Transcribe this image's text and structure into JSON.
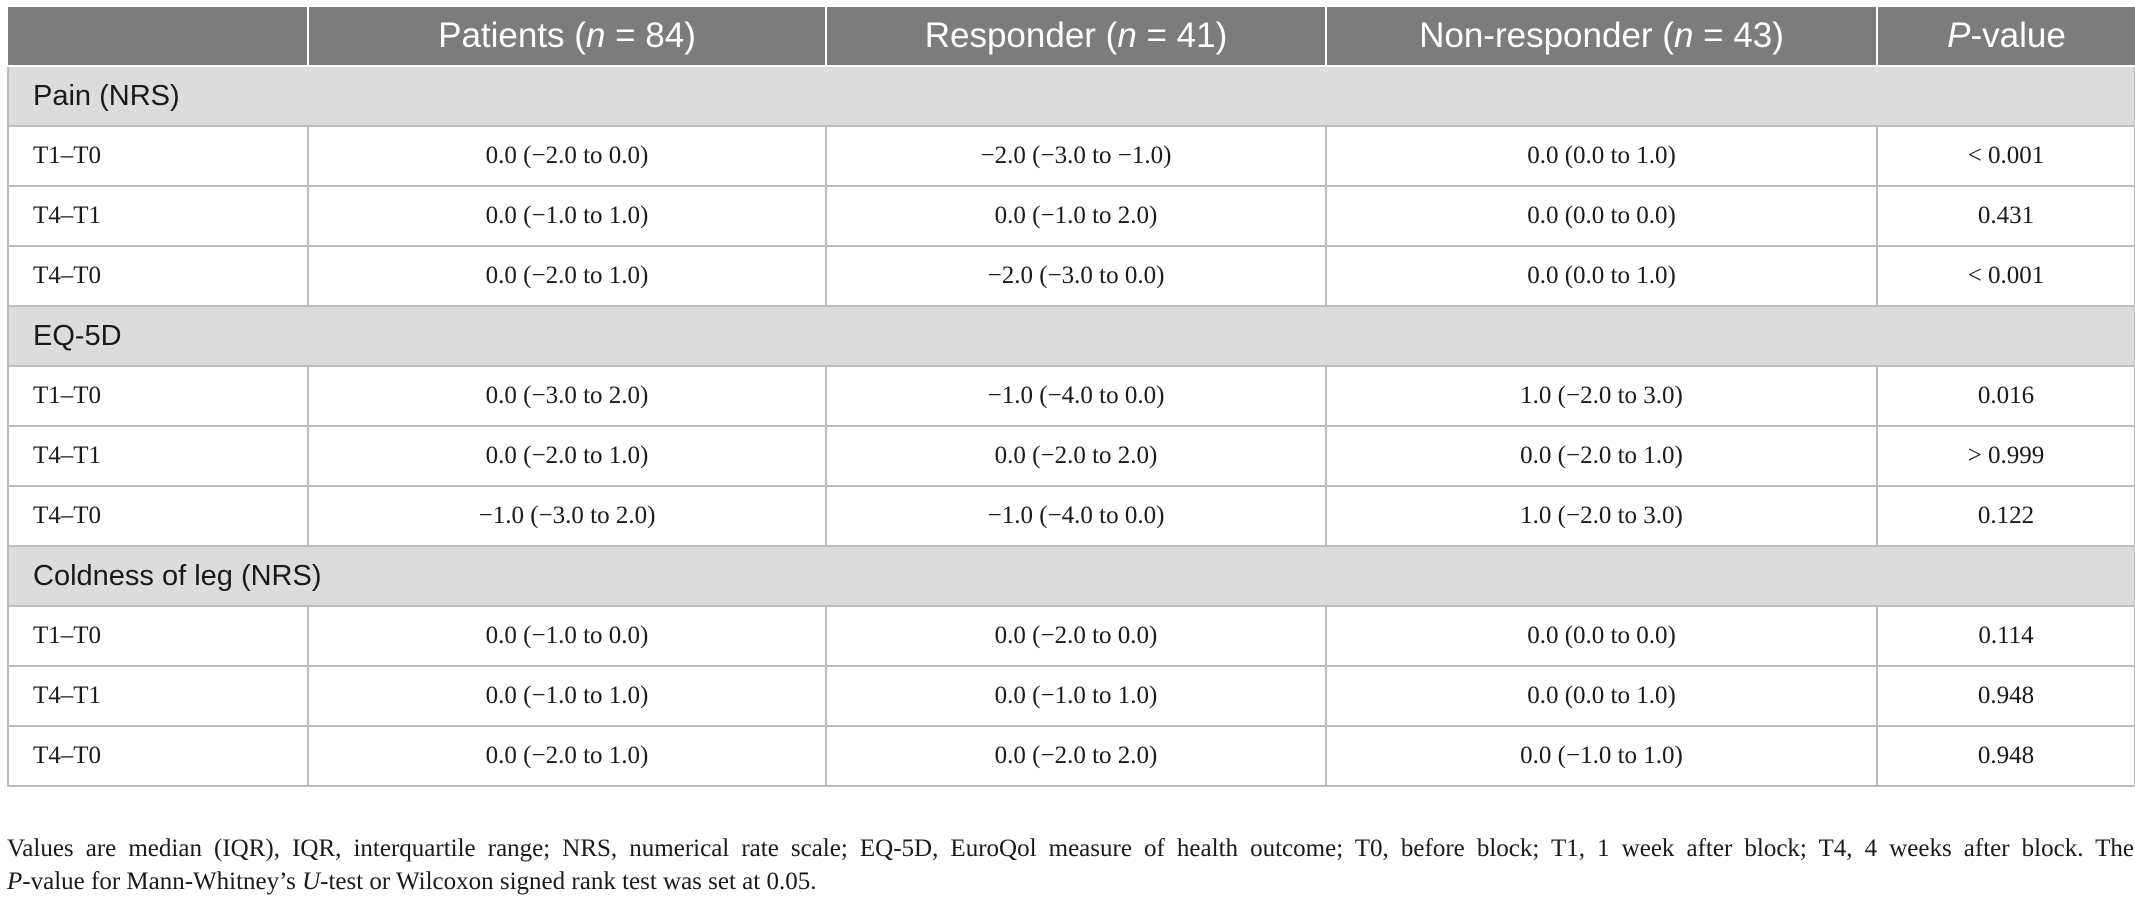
{
  "header": {
    "col0": "",
    "col1": {
      "pre": "Patients (",
      "n": "n",
      "post": " = 84)"
    },
    "col2": {
      "pre": "Responder (",
      "n": "n",
      "post": " = 41)"
    },
    "col3": {
      "pre": "Non-responder (",
      "n": "n",
      "post": " = 43)"
    },
    "col4": {
      "pre": "",
      "n": "P",
      "post": "-value"
    }
  },
  "sections": [
    {
      "title": "Pain (NRS)",
      "rows": [
        {
          "label": "T1–T0",
          "patients": "0.0 (−2.0 to 0.0)",
          "responder": "−2.0 (−3.0 to −1.0)",
          "nonresponder": "0.0 (0.0 to 1.0)",
          "p": "< 0.001"
        },
        {
          "label": "T4–T1",
          "patients": "0.0 (−1.0 to 1.0)",
          "responder": "0.0 (−1.0 to 2.0)",
          "nonresponder": "0.0 (0.0 to 0.0)",
          "p": "0.431"
        },
        {
          "label": "T4–T0",
          "patients": "0.0 (−2.0 to 1.0)",
          "responder": "−2.0 (−3.0 to 0.0)",
          "nonresponder": "0.0 (0.0 to 1.0)",
          "p": "< 0.001"
        }
      ]
    },
    {
      "title": "EQ-5D",
      "rows": [
        {
          "label": "T1–T0",
          "patients": "0.0 (−3.0 to 2.0)",
          "responder": "−1.0 (−4.0 to 0.0)",
          "nonresponder": "1.0 (−2.0 to 3.0)",
          "p": "0.016"
        },
        {
          "label": "T4–T1",
          "patients": "0.0 (−2.0 to 1.0)",
          "responder": "0.0 (−2.0 to 2.0)",
          "nonresponder": "0.0 (−2.0 to 1.0)",
          "p": "> 0.999"
        },
        {
          "label": "T4–T0",
          "patients": "−1.0 (−3.0 to 2.0)",
          "responder": "−1.0 (−4.0 to 0.0)",
          "nonresponder": "1.0 (−2.0 to 3.0)",
          "p": "0.122"
        }
      ]
    },
    {
      "title": "Coldness of leg (NRS)",
      "rows": [
        {
          "label": "T1–T0",
          "patients": "0.0 (−1.0 to 0.0)",
          "responder": "0.0 (−2.0 to 0.0)",
          "nonresponder": "0.0 (0.0 to 0.0)",
          "p": "0.114"
        },
        {
          "label": "T4–T1",
          "patients": "0.0 (−1.0 to 1.0)",
          "responder": "0.0 (−1.0 to 1.0)",
          "nonresponder": "0.0 (0.0 to 1.0)",
          "p": "0.948"
        },
        {
          "label": "T4–T0",
          "patients": "0.0 (−2.0 to 1.0)",
          "responder": "0.0 (−2.0 to 2.0)",
          "nonresponder": "0.0 (−1.0 to 1.0)",
          "p": "0.948"
        }
      ]
    }
  ],
  "footnote": {
    "line1": "Values are median (IQR), IQR, interquartile range; NRS, numerical rate scale; EQ-5D, EuroQol measure of health outcome; T0, before block; T1, 1 week after block; T4, 4 weeks after block. The",
    "line2_p": "P",
    "line2_a": "-value for Mann-Whitney’s ",
    "line2_u": "U",
    "line2_b": "-test or Wilcoxon signed rank test was set at 0.05."
  }
}
